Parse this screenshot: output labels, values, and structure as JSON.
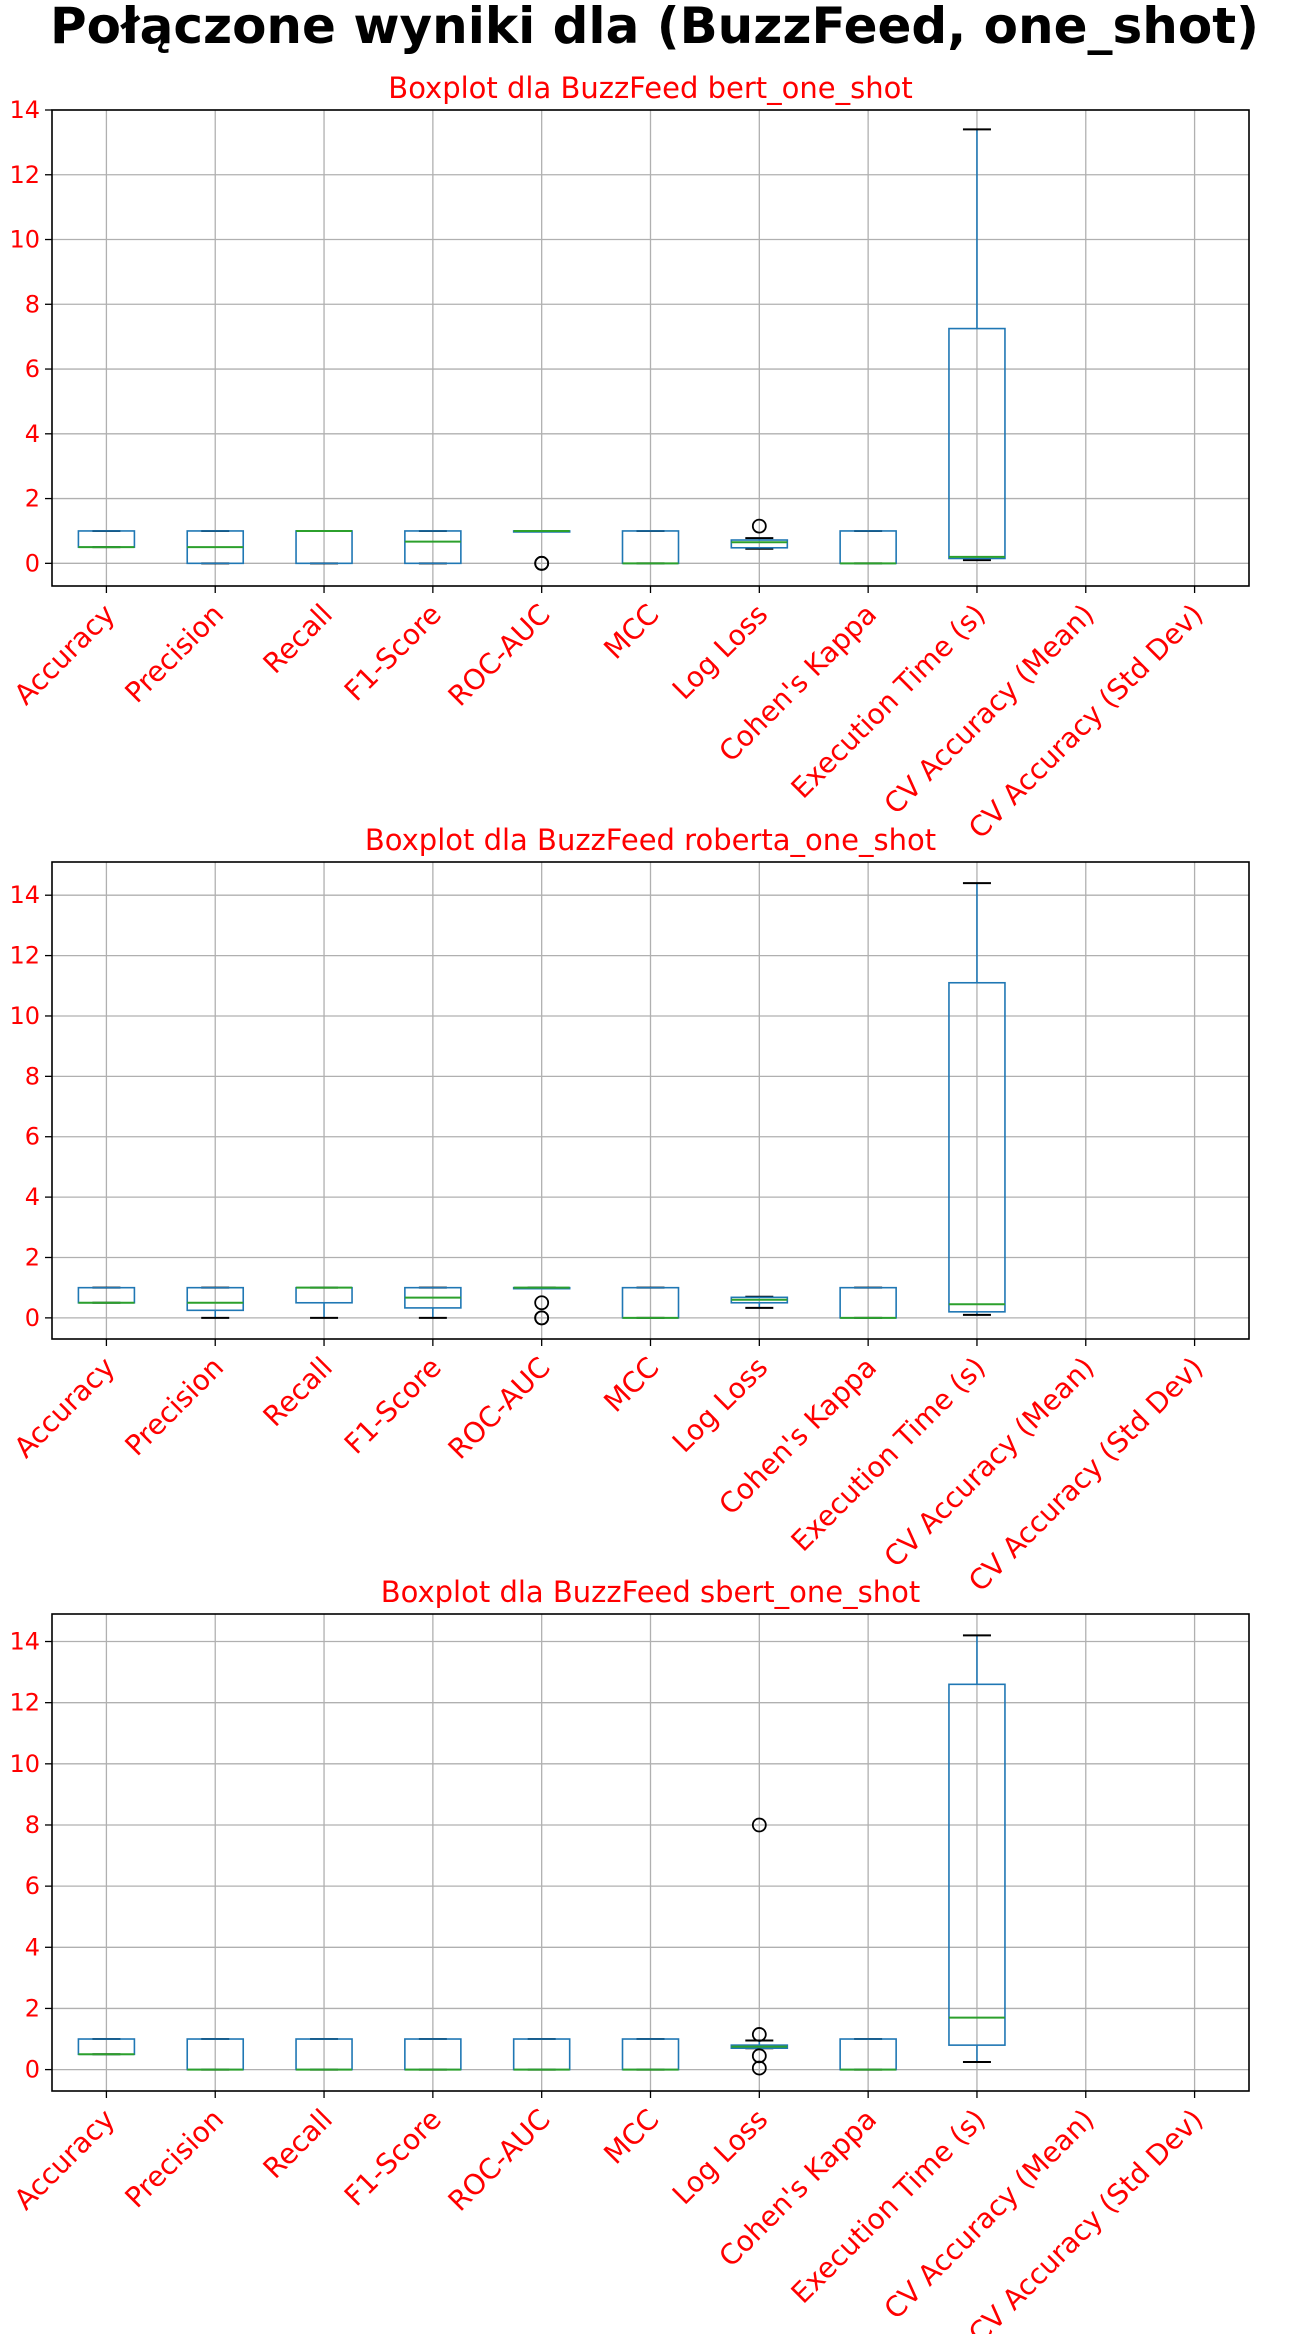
{
  "figure_title": "Połączone wyniki dla (BuzzFeed, one_shot)",
  "colors": {
    "box": "#1f77b4",
    "median": "#2ca02c",
    "whisker": "#000000",
    "text": "#ff0000",
    "grid": "#b0b0b0",
    "frame": "#000000"
  },
  "chart_data": [
    {
      "type": "box",
      "title": "Boxplot dla BuzzFeed bert_one_shot",
      "categories": [
        "Accuracy",
        "Precision",
        "Recall",
        "F1-Score",
        "ROC-AUC",
        "MCC",
        "Log Loss",
        "Cohen's Kappa",
        "Execution Time (s)",
        "CV Accuracy (Mean)",
        "CV Accuracy (Std Dev)"
      ],
      "yticks": [
        0,
        2,
        4,
        6,
        8,
        10,
        12,
        14
      ],
      "ylim": [
        -0.7,
        14.0
      ],
      "grid": true,
      "boxes": [
        {
          "whislo": 0.5,
          "q1": 0.5,
          "med": 0.5,
          "q3": 1.0,
          "whishi": 1.0,
          "fliers": []
        },
        {
          "whislo": 0.0,
          "q1": 0.0,
          "med": 0.5,
          "q3": 1.0,
          "whishi": 1.0,
          "fliers": []
        },
        {
          "whislo": 0.0,
          "q1": 0.0,
          "med": 1.0,
          "q3": 1.0,
          "whishi": 1.0,
          "fliers": []
        },
        {
          "whislo": 0.0,
          "q1": 0.0,
          "med": 0.67,
          "q3": 1.0,
          "whishi": 1.0,
          "fliers": []
        },
        {
          "whislo": 1.0,
          "q1": 1.0,
          "med": 1.0,
          "q3": 1.0,
          "whishi": 1.0,
          "fliers": [
            0.0,
            0.0
          ]
        },
        {
          "whislo": 0.0,
          "q1": 0.0,
          "med": 0.0,
          "q3": 1.0,
          "whishi": 1.0,
          "fliers": []
        },
        {
          "whislo": 0.45,
          "q1": 0.48,
          "med": 0.65,
          "q3": 0.72,
          "whishi": 0.78,
          "fliers": [
            1.15
          ]
        },
        {
          "whislo": 0.0,
          "q1": 0.0,
          "med": 0.0,
          "q3": 1.0,
          "whishi": 1.0,
          "fliers": []
        },
        {
          "whislo": 0.1,
          "q1": 0.15,
          "med": 0.2,
          "q3": 7.25,
          "whishi": 13.4,
          "fliers": []
        },
        null,
        null
      ]
    },
    {
      "type": "box",
      "title": "Boxplot dla BuzzFeed roberta_one_shot",
      "categories": [
        "Accuracy",
        "Precision",
        "Recall",
        "F1-Score",
        "ROC-AUC",
        "MCC",
        "Log Loss",
        "Cohen's Kappa",
        "Execution Time (s)",
        "CV Accuracy (Mean)",
        "CV Accuracy (Std Dev)"
      ],
      "yticks": [
        0,
        2,
        4,
        6,
        8,
        10,
        12,
        14
      ],
      "ylim": [
        -0.7,
        15.1
      ],
      "grid": true,
      "boxes": [
        {
          "whislo": 0.5,
          "q1": 0.5,
          "med": 0.5,
          "q3": 1.0,
          "whishi": 1.0,
          "fliers": []
        },
        {
          "whislo": 0.0,
          "q1": 0.25,
          "med": 0.5,
          "q3": 1.0,
          "whishi": 1.0,
          "fliers": []
        },
        {
          "whislo": 0.0,
          "q1": 0.5,
          "med": 1.0,
          "q3": 1.0,
          "whishi": 1.0,
          "fliers": []
        },
        {
          "whislo": 0.0,
          "q1": 0.33,
          "med": 0.67,
          "q3": 1.0,
          "whishi": 1.0,
          "fliers": []
        },
        {
          "whislo": 1.0,
          "q1": 1.0,
          "med": 1.0,
          "q3": 1.0,
          "whishi": 1.0,
          "fliers": [
            0.5,
            0.0,
            0.0
          ]
        },
        {
          "whislo": 0.0,
          "q1": 0.0,
          "med": 0.0,
          "q3": 1.0,
          "whishi": 1.0,
          "fliers": []
        },
        {
          "whislo": 0.33,
          "q1": 0.5,
          "med": 0.6,
          "q3": 0.68,
          "whishi": 0.7,
          "fliers": []
        },
        {
          "whislo": 0.0,
          "q1": 0.0,
          "med": 0.0,
          "q3": 1.0,
          "whishi": 1.0,
          "fliers": []
        },
        {
          "whislo": 0.1,
          "q1": 0.2,
          "med": 0.45,
          "q3": 11.1,
          "whishi": 14.4,
          "fliers": []
        },
        null,
        null
      ]
    },
    {
      "type": "box",
      "title": "Boxplot dla BuzzFeed sbert_one_shot",
      "categories": [
        "Accuracy",
        "Precision",
        "Recall",
        "F1-Score",
        "ROC-AUC",
        "MCC",
        "Log Loss",
        "Cohen's Kappa",
        "Execution Time (s)",
        "CV Accuracy (Mean)",
        "CV Accuracy (Std Dev)"
      ],
      "yticks": [
        0,
        2,
        4,
        6,
        8,
        10,
        12,
        14
      ],
      "ylim": [
        -0.7,
        14.9
      ],
      "grid": true,
      "boxes": [
        {
          "whislo": 0.5,
          "q1": 0.5,
          "med": 0.5,
          "q3": 1.0,
          "whishi": 1.0,
          "fliers": []
        },
        {
          "whislo": 0.0,
          "q1": 0.0,
          "med": 0.0,
          "q3": 1.0,
          "whishi": 1.0,
          "fliers": []
        },
        {
          "whislo": 0.0,
          "q1": 0.0,
          "med": 0.0,
          "q3": 1.0,
          "whishi": 1.0,
          "fliers": []
        },
        {
          "whislo": 0.0,
          "q1": 0.0,
          "med": 0.0,
          "q3": 1.0,
          "whishi": 1.0,
          "fliers": []
        },
        {
          "whislo": 0.0,
          "q1": 0.0,
          "med": 0.0,
          "q3": 1.0,
          "whishi": 1.0,
          "fliers": []
        },
        {
          "whislo": 0.0,
          "q1": 0.0,
          "med": 0.0,
          "q3": 1.0,
          "whishi": 1.0,
          "fliers": []
        },
        {
          "whislo": 0.7,
          "q1": 0.7,
          "med": 0.75,
          "q3": 0.8,
          "whishi": 0.95,
          "fliers": [
            8.0,
            1.15,
            0.45,
            0.05
          ]
        },
        {
          "whislo": 0.0,
          "q1": 0.0,
          "med": 0.0,
          "q3": 1.0,
          "whishi": 1.0,
          "fliers": []
        },
        {
          "whislo": 0.25,
          "q1": 0.8,
          "med": 1.7,
          "q3": 12.6,
          "whishi": 14.2,
          "fliers": []
        },
        null,
        null
      ]
    }
  ]
}
